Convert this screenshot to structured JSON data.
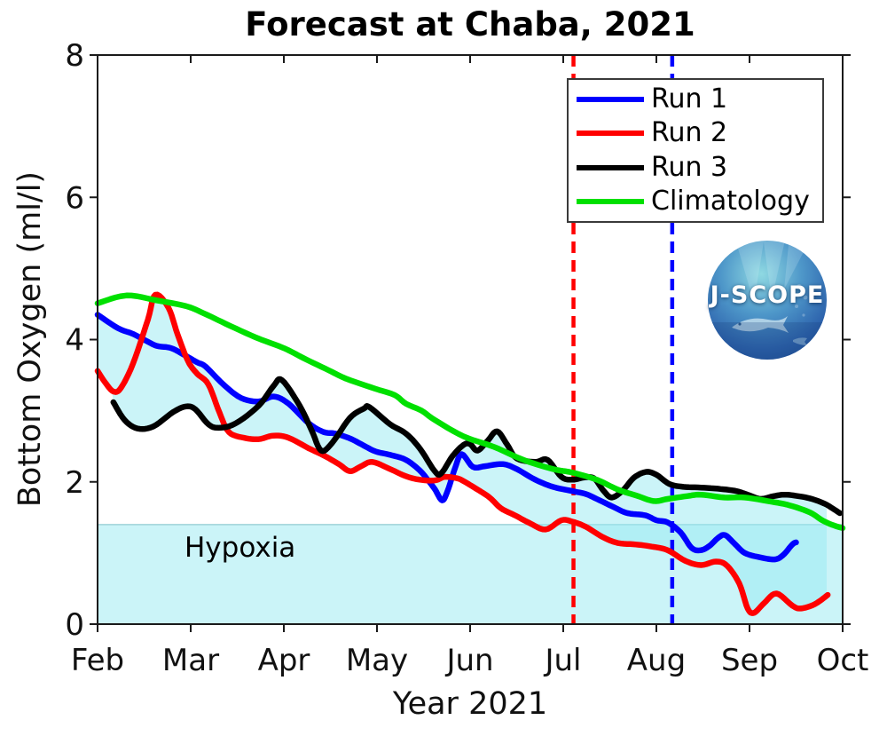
{
  "title": "Forecast at Chaba, 2021",
  "axes": {
    "ylabel": "Bottom Oxygen (ml/l)",
    "xlabel": "Year 2021",
    "color": "#1a1a1a",
    "tick_label_color": "#111111"
  },
  "hypoxia": {
    "label": "Hypoxia",
    "threshold": 1.4,
    "band_color": "rgba(152,233,241,0.5)",
    "line_color": "#9fd3d8"
  },
  "logo": {
    "text": "J-SCOPE"
  },
  "chart_data": {
    "type": "line",
    "title": "Forecast at Chaba, 2021",
    "xlabel": "Year 2021",
    "ylabel": "Bottom Oxygen (ml/l)",
    "x_unit": "month of 2021 (2 = Feb 1 ... 10 = Oct 1)",
    "xlim": [
      2,
      10
    ],
    "ylim": [
      0,
      8
    ],
    "yticks": [
      0,
      2,
      4,
      6,
      8
    ],
    "xtick_months": [
      2,
      3,
      4,
      5,
      6,
      7,
      8,
      9,
      10
    ],
    "xtick_labels": [
      "Feb",
      "Mar",
      "Apr",
      "May",
      "Jun",
      "Jul",
      "Aug",
      "Sep",
      "Oct"
    ],
    "grid": false,
    "legend_position": "upper right",
    "hypoxia_threshold": 1.4,
    "envelope": "shaded cyan band spans min-max of Run 1-3",
    "envelope_x_range": [
      2.0,
      9.84
    ],
    "vlines": [
      {
        "name": "vline-red",
        "x_month": 7.11,
        "style": "dashed",
        "color": "#ff0000"
      },
      {
        "name": "vline-blue",
        "x_month": 8.17,
        "style": "dashed",
        "color": "#0000ff"
      }
    ],
    "series": [
      {
        "name": "Run 1",
        "color": "#0000ff",
        "points": [
          [
            2.0,
            4.35
          ],
          [
            2.22,
            4.16
          ],
          [
            2.38,
            4.08
          ],
          [
            2.54,
            3.97
          ],
          [
            2.64,
            3.91
          ],
          [
            2.79,
            3.88
          ],
          [
            2.95,
            3.77
          ],
          [
            3.07,
            3.68
          ],
          [
            3.16,
            3.62
          ],
          [
            3.35,
            3.37
          ],
          [
            3.54,
            3.18
          ],
          [
            3.73,
            3.13
          ],
          [
            3.89,
            3.2
          ],
          [
            4.05,
            3.1
          ],
          [
            4.27,
            2.82
          ],
          [
            4.43,
            2.7
          ],
          [
            4.55,
            2.68
          ],
          [
            4.71,
            2.61
          ],
          [
            4.83,
            2.53
          ],
          [
            4.98,
            2.43
          ],
          [
            5.14,
            2.38
          ],
          [
            5.31,
            2.31
          ],
          [
            5.46,
            2.16
          ],
          [
            5.55,
            2.02
          ],
          [
            5.62,
            1.9
          ],
          [
            5.7,
            1.74
          ],
          [
            5.76,
            1.88
          ],
          [
            5.84,
            2.2
          ],
          [
            5.91,
            2.39
          ],
          [
            6.03,
            2.21
          ],
          [
            6.16,
            2.22
          ],
          [
            6.35,
            2.25
          ],
          [
            6.5,
            2.18
          ],
          [
            6.7,
            2.03
          ],
          [
            6.89,
            1.93
          ],
          [
            7.1,
            1.87
          ],
          [
            7.24,
            1.83
          ],
          [
            7.36,
            1.76
          ],
          [
            7.55,
            1.64
          ],
          [
            7.69,
            1.56
          ],
          [
            7.88,
            1.53
          ],
          [
            8.0,
            1.46
          ],
          [
            8.12,
            1.43
          ],
          [
            8.26,
            1.29
          ],
          [
            8.38,
            1.07
          ],
          [
            8.48,
            1.04
          ],
          [
            8.57,
            1.1
          ],
          [
            8.67,
            1.22
          ],
          [
            8.74,
            1.25
          ],
          [
            8.84,
            1.13
          ],
          [
            8.95,
            1.0
          ],
          [
            9.11,
            0.94
          ],
          [
            9.27,
            0.91
          ],
          [
            9.36,
            0.97
          ],
          [
            9.46,
            1.12
          ],
          [
            9.5,
            1.15
          ]
        ]
      },
      {
        "name": "Run 2",
        "color": "#ff0000",
        "points": [
          [
            2.0,
            3.56
          ],
          [
            2.08,
            3.4
          ],
          [
            2.17,
            3.27
          ],
          [
            2.25,
            3.32
          ],
          [
            2.38,
            3.66
          ],
          [
            2.54,
            4.28
          ],
          [
            2.62,
            4.63
          ],
          [
            2.76,
            4.45
          ],
          [
            2.86,
            4.07
          ],
          [
            2.97,
            3.7
          ],
          [
            3.07,
            3.52
          ],
          [
            3.19,
            3.37
          ],
          [
            3.31,
            2.97
          ],
          [
            3.41,
            2.7
          ],
          [
            3.57,
            2.62
          ],
          [
            3.73,
            2.6
          ],
          [
            3.89,
            2.65
          ],
          [
            4.05,
            2.62
          ],
          [
            4.27,
            2.47
          ],
          [
            4.43,
            2.37
          ],
          [
            4.59,
            2.25
          ],
          [
            4.71,
            2.15
          ],
          [
            4.83,
            2.22
          ],
          [
            4.95,
            2.28
          ],
          [
            5.14,
            2.18
          ],
          [
            5.31,
            2.08
          ],
          [
            5.46,
            2.03
          ],
          [
            5.62,
            2.02
          ],
          [
            5.73,
            2.07
          ],
          [
            5.86,
            2.05
          ],
          [
            5.93,
            2.01
          ],
          [
            6.07,
            1.9
          ],
          [
            6.21,
            1.78
          ],
          [
            6.33,
            1.63
          ],
          [
            6.48,
            1.53
          ],
          [
            6.64,
            1.42
          ],
          [
            6.81,
            1.33
          ],
          [
            6.98,
            1.46
          ],
          [
            7.1,
            1.44
          ],
          [
            7.24,
            1.37
          ],
          [
            7.43,
            1.22
          ],
          [
            7.59,
            1.14
          ],
          [
            7.78,
            1.12
          ],
          [
            7.95,
            1.09
          ],
          [
            8.12,
            1.04
          ],
          [
            8.31,
            0.89
          ],
          [
            8.48,
            0.83
          ],
          [
            8.64,
            0.88
          ],
          [
            8.76,
            0.82
          ],
          [
            8.89,
            0.57
          ],
          [
            8.98,
            0.22
          ],
          [
            9.05,
            0.16
          ],
          [
            9.16,
            0.3
          ],
          [
            9.29,
            0.43
          ],
          [
            9.46,
            0.26
          ],
          [
            9.55,
            0.22
          ],
          [
            9.7,
            0.28
          ],
          [
            9.84,
            0.41
          ]
        ]
      },
      {
        "name": "Run 3",
        "color": "#000000",
        "points": [
          [
            2.17,
            3.12
          ],
          [
            2.29,
            2.87
          ],
          [
            2.43,
            2.75
          ],
          [
            2.6,
            2.78
          ],
          [
            2.81,
            2.98
          ],
          [
            2.95,
            3.06
          ],
          [
            3.05,
            3.02
          ],
          [
            3.19,
            2.81
          ],
          [
            3.3,
            2.76
          ],
          [
            3.48,
            2.82
          ],
          [
            3.73,
            3.07
          ],
          [
            3.89,
            3.35
          ],
          [
            3.98,
            3.43
          ],
          [
            4.17,
            3.07
          ],
          [
            4.3,
            2.72
          ],
          [
            4.4,
            2.44
          ],
          [
            4.52,
            2.55
          ],
          [
            4.71,
            2.9
          ],
          [
            4.86,
            3.03
          ],
          [
            4.92,
            3.05
          ],
          [
            5.14,
            2.81
          ],
          [
            5.31,
            2.68
          ],
          [
            5.46,
            2.47
          ],
          [
            5.62,
            2.15
          ],
          [
            5.69,
            2.12
          ],
          [
            5.81,
            2.36
          ],
          [
            5.93,
            2.52
          ],
          [
            6.0,
            2.53
          ],
          [
            6.08,
            2.44
          ],
          [
            6.19,
            2.58
          ],
          [
            6.29,
            2.71
          ],
          [
            6.4,
            2.52
          ],
          [
            6.5,
            2.33
          ],
          [
            6.7,
            2.28
          ],
          [
            6.83,
            2.31
          ],
          [
            6.98,
            2.07
          ],
          [
            7.1,
            2.03
          ],
          [
            7.22,
            2.06
          ],
          [
            7.33,
            2.05
          ],
          [
            7.43,
            1.88
          ],
          [
            7.52,
            1.78
          ],
          [
            7.64,
            1.88
          ],
          [
            7.76,
            2.06
          ],
          [
            7.89,
            2.14
          ],
          [
            8.0,
            2.1
          ],
          [
            8.14,
            1.97
          ],
          [
            8.29,
            1.93
          ],
          [
            8.48,
            1.92
          ],
          [
            8.69,
            1.9
          ],
          [
            8.86,
            1.87
          ],
          [
            9.0,
            1.81
          ],
          [
            9.12,
            1.76
          ],
          [
            9.26,
            1.8
          ],
          [
            9.38,
            1.82
          ],
          [
            9.52,
            1.8
          ],
          [
            9.67,
            1.76
          ],
          [
            9.81,
            1.69
          ],
          [
            9.9,
            1.62
          ],
          [
            9.97,
            1.56
          ]
        ]
      },
      {
        "name": "Climatology",
        "color": "#00e000",
        "points": [
          [
            2.0,
            4.51
          ],
          [
            2.31,
            4.62
          ],
          [
            2.64,
            4.55
          ],
          [
            2.95,
            4.47
          ],
          [
            3.14,
            4.37
          ],
          [
            3.38,
            4.22
          ],
          [
            3.7,
            4.03
          ],
          [
            4.0,
            3.88
          ],
          [
            4.24,
            3.72
          ],
          [
            4.48,
            3.57
          ],
          [
            4.67,
            3.45
          ],
          [
            4.98,
            3.31
          ],
          [
            5.19,
            3.22
          ],
          [
            5.31,
            3.1
          ],
          [
            5.48,
            3.0
          ],
          [
            5.62,
            2.87
          ],
          [
            5.93,
            2.64
          ],
          [
            6.26,
            2.49
          ],
          [
            6.57,
            2.31
          ],
          [
            6.89,
            2.18
          ],
          [
            7.1,
            2.13
          ],
          [
            7.36,
            2.03
          ],
          [
            7.59,
            1.89
          ],
          [
            7.78,
            1.81
          ],
          [
            7.97,
            1.73
          ],
          [
            8.12,
            1.76
          ],
          [
            8.33,
            1.8
          ],
          [
            8.48,
            1.82
          ],
          [
            8.73,
            1.78
          ],
          [
            8.95,
            1.78
          ],
          [
            9.24,
            1.72
          ],
          [
            9.43,
            1.67
          ],
          [
            9.65,
            1.57
          ],
          [
            9.78,
            1.46
          ],
          [
            9.9,
            1.39
          ],
          [
            10.0,
            1.35
          ]
        ]
      }
    ]
  }
}
